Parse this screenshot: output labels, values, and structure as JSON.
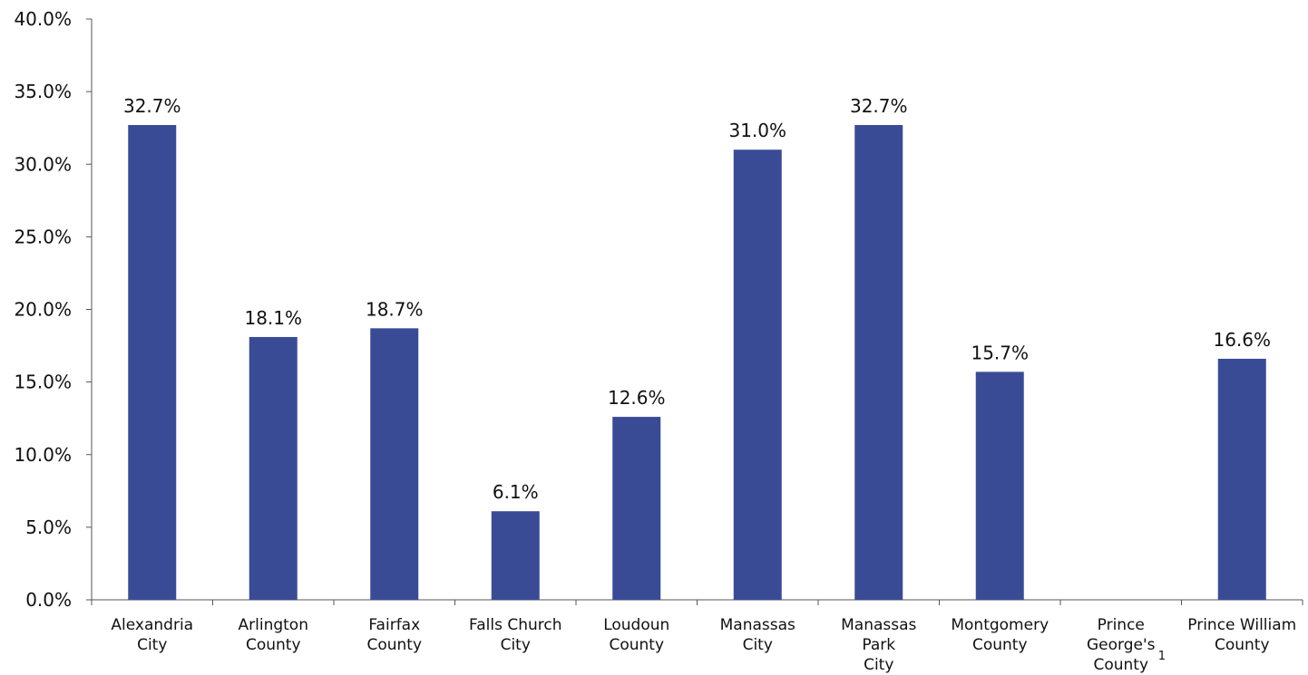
{
  "chart_data": {
    "type": "bar",
    "title": "",
    "xlabel": "",
    "ylabel": "",
    "ylim": [
      0,
      40
    ],
    "y_ticks": [
      "0.0%",
      "5.0%",
      "10.0%",
      "15.0%",
      "20.0%",
      "25.0%",
      "30.0%",
      "35.0%",
      "40.0%"
    ],
    "grid": false,
    "bar_color": "#3A4B96",
    "categories": [
      [
        "Alexandria",
        "City"
      ],
      [
        "Arlington",
        "County"
      ],
      [
        "Fairfax",
        "County"
      ],
      [
        "Falls Church",
        "City"
      ],
      [
        "Loudoun",
        "County"
      ],
      [
        "Manassas",
        "City"
      ],
      [
        "Manassas",
        "Park",
        "City"
      ],
      [
        "Montgomery",
        "County"
      ],
      [
        "Prince",
        "George's",
        "County"
      ],
      [
        "Prince William",
        "County"
      ]
    ],
    "footnote_marks": [
      "",
      "",
      "",
      "",
      "",
      "",
      "",
      "",
      "1",
      ""
    ],
    "values": [
      32.7,
      18.1,
      18.7,
      6.1,
      12.6,
      31.0,
      32.7,
      15.7,
      null,
      16.6
    ],
    "data_labels": [
      "32.7%",
      "18.1%",
      "18.7%",
      "6.1%",
      "12.6%",
      "31.0%",
      "32.7%",
      "15.7%",
      "",
      "16.6%"
    ]
  }
}
